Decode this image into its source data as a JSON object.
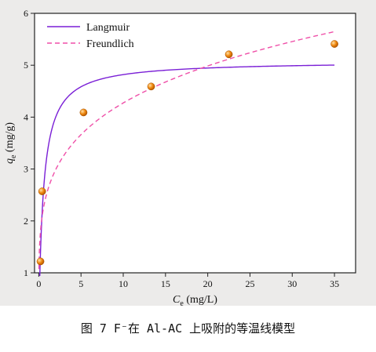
{
  "chart_data": {
    "type": "scatter",
    "xlabel_symbol": "C",
    "xlabel_sub": "e",
    "xlabel_unit": " (mg/L)",
    "ylabel_symbol": "q",
    "ylabel_sub": "e",
    "ylabel_unit": " (mg/g)",
    "xlim": [
      -0.5,
      37.5
    ],
    "ylim": [
      1,
      6
    ],
    "xticks": [
      0,
      5,
      10,
      15,
      20,
      25,
      30,
      35
    ],
    "yticks": [
      1,
      2,
      3,
      4,
      5,
      6
    ],
    "points": {
      "x": [
        0.2,
        0.4,
        5.3,
        13.3,
        22.5,
        35.0
      ],
      "y": [
        1.22,
        2.57,
        4.09,
        4.59,
        5.21,
        5.41
      ],
      "color": "#f08a12"
    },
    "series": [
      {
        "name": "Langmuir",
        "color": "#7a1fd6",
        "style": "solid",
        "model": "langmuir",
        "params": {
          "qm": 5.08,
          "kl": 1.85
        },
        "x_range": [
          0.05,
          35
        ]
      },
      {
        "name": "Freundlich",
        "color": "#ef4fa8",
        "style": "dashed",
        "model": "freundlich",
        "params": {
          "kf": 2.56,
          "n": 0.2225
        },
        "x_range": [
          0.02,
          35
        ]
      }
    ],
    "legend_position": "top-left"
  },
  "caption": "图 7  F⁻在 Al-AC 上吸附的等温线模型"
}
